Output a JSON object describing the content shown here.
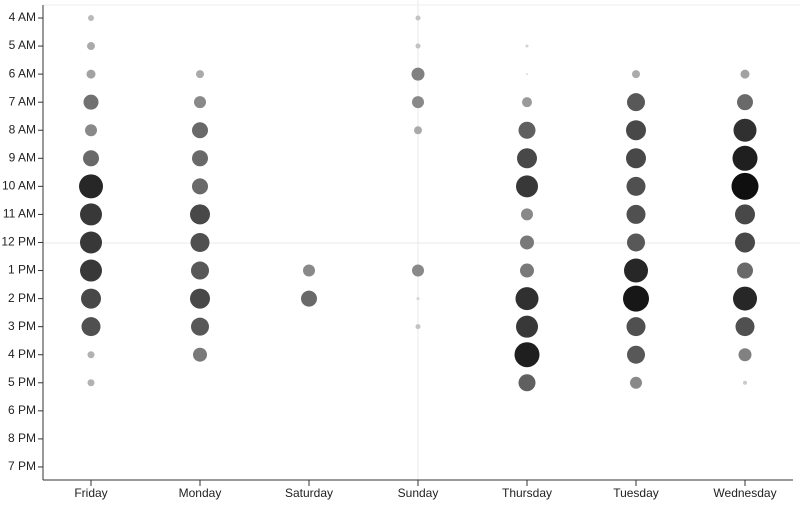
{
  "chart_data": {
    "type": "punchcard",
    "categories": [
      "Friday",
      "Monday",
      "Saturday",
      "Sunday",
      "Thursday",
      "Tuesday",
      "Wednesday"
    ],
    "y_categories": [
      "4 AM",
      "5 AM",
      "6 AM",
      "7 AM",
      "8 AM",
      "9 AM",
      "10 AM",
      "11 AM",
      "12 PM",
      "1 PM",
      "2 PM",
      "3 PM",
      "4 PM",
      "5 PM",
      "6 PM",
      "8 PM",
      "7 PM"
    ],
    "values": [
      [
        3,
        4,
        4.5,
        7.5,
        6,
        8,
        12,
        11,
        11,
        11,
        10,
        9.5,
        3.5,
        3.5,
        0,
        0,
        0
      ],
      [
        0,
        0,
        4,
        6,
        8,
        8,
        8,
        10,
        9.5,
        9,
        10,
        9,
        7,
        0,
        0,
        0,
        0
      ],
      [
        0,
        0,
        0,
        0,
        0,
        0,
        0,
        0,
        0,
        6,
        8,
        0,
        0,
        0,
        0,
        0,
        0
      ],
      [
        2.5,
        2.5,
        6.5,
        6,
        4,
        0,
        0,
        0,
        0,
        6,
        1.5,
        2.5,
        0,
        0,
        0,
        0,
        0
      ],
      [
        0,
        1.5,
        1,
        5,
        8.5,
        10,
        11,
        6,
        7,
        7,
        11.5,
        11,
        12.5,
        8.5,
        0,
        0,
        0
      ],
      [
        0,
        0,
        4,
        9,
        10,
        10,
        9.5,
        9.5,
        9,
        12,
        13,
        9.5,
        9,
        6,
        0,
        0,
        0
      ],
      [
        0,
        0,
        4.5,
        8,
        11.5,
        12.5,
        13.5,
        10,
        10,
        8,
        12,
        9.5,
        6.5,
        2,
        0,
        0,
        0
      ]
    ]
  }
}
